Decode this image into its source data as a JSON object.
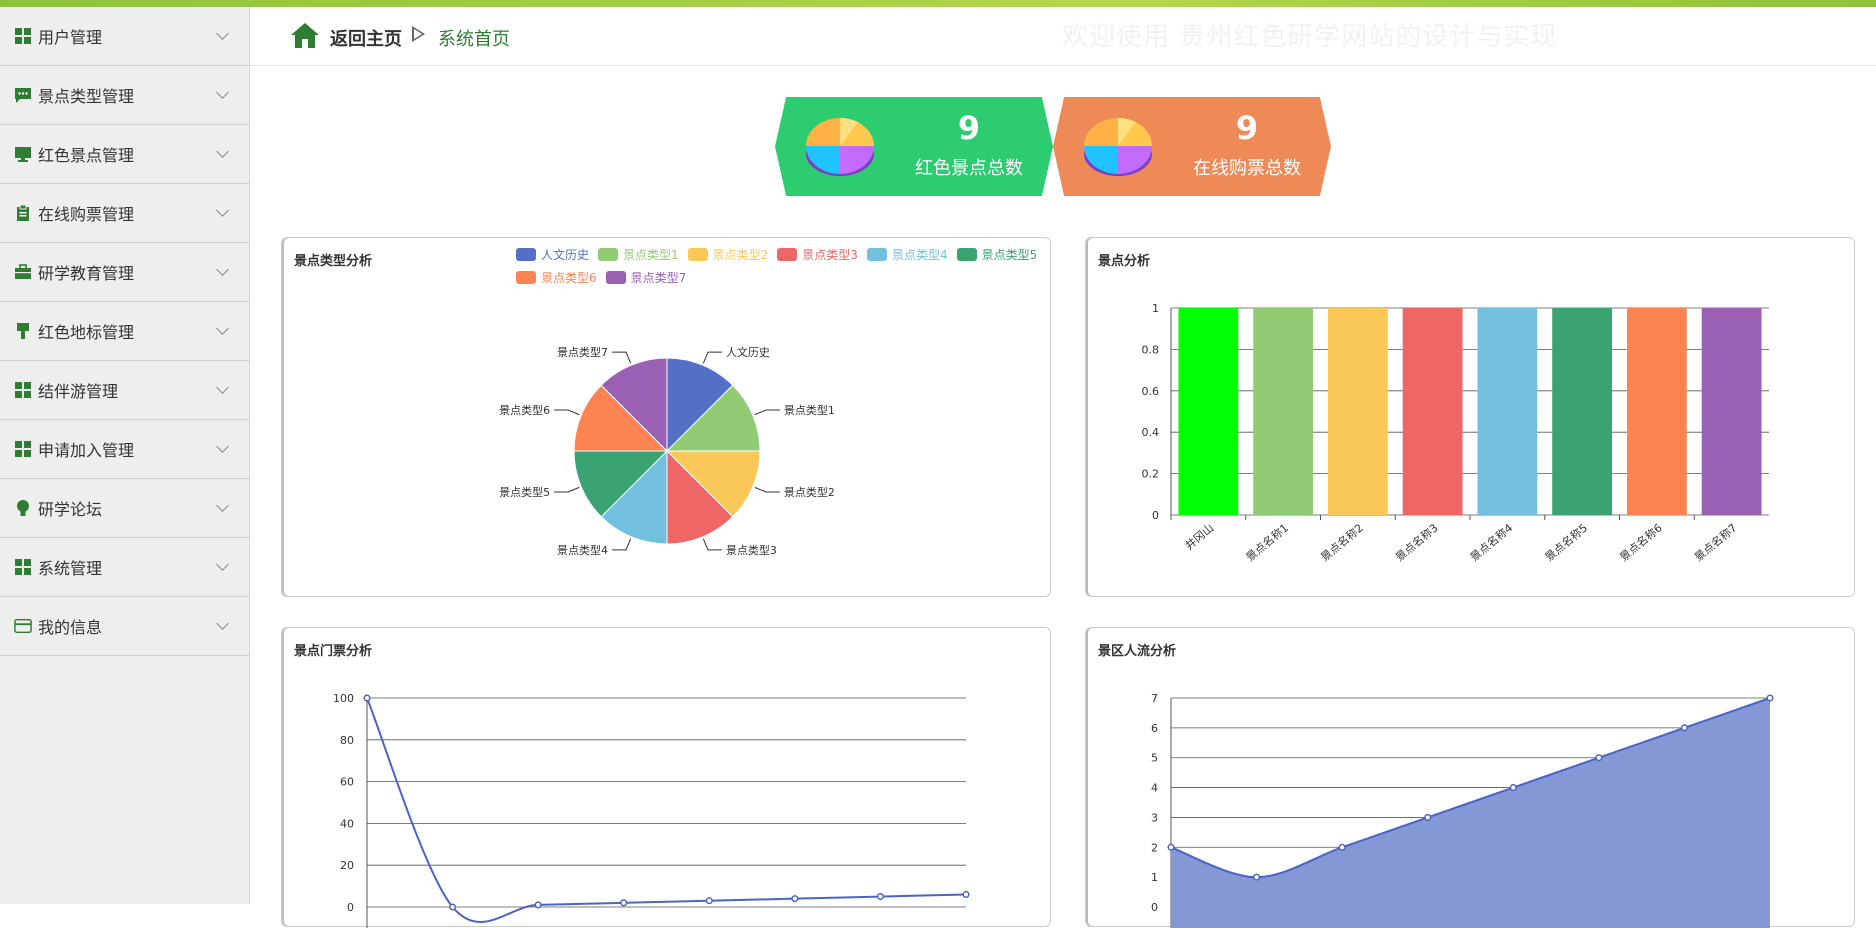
{
  "app": {
    "ghost_title": "欢迎使用 贵州红色研学网站的设计与实现"
  },
  "colors": {
    "accent": "#2e7d32",
    "stat1": "#2ecc71",
    "stat2": "#ed8a58"
  },
  "sidebar": {
    "items": [
      {
        "label": "用户管理",
        "icon": "grid-icon"
      },
      {
        "label": "景点类型管理",
        "icon": "chat-icon"
      },
      {
        "label": "红色景点管理",
        "icon": "monitor-icon"
      },
      {
        "label": "在线购票管理",
        "icon": "clipboard-icon"
      },
      {
        "label": "研学教育管理",
        "icon": "briefcase-icon"
      },
      {
        "label": "红色地标管理",
        "icon": "brush-icon"
      },
      {
        "label": "结伴游管理",
        "icon": "grid-icon"
      },
      {
        "label": "申请加入管理",
        "icon": "grid-icon"
      },
      {
        "label": "研学论坛",
        "icon": "bulb-icon"
      },
      {
        "label": "系统管理",
        "icon": "grid-icon"
      },
      {
        "label": "我的信息",
        "icon": "card-icon"
      }
    ]
  },
  "header": {
    "back_home": "返回主页",
    "current": "系统首页"
  },
  "stats": [
    {
      "value": "9",
      "label": "红色景点总数"
    },
    {
      "value": "9",
      "label": "在线购票总数"
    }
  ],
  "panels": {
    "type_analysis": "景点类型分析",
    "spot_analysis": "景点分析",
    "ticket_analysis": "景点门票分析",
    "flow_analysis": "景区人流分析"
  },
  "chart_data": [
    {
      "type": "pie",
      "title": "景点类型分析",
      "categories": [
        "人文历史",
        "景点类型1",
        "景点类型2",
        "景点类型3",
        "景点类型4",
        "景点类型5",
        "景点类型6",
        "景点类型7"
      ],
      "values": [
        1,
        1,
        1,
        1,
        1,
        1,
        1,
        1
      ],
      "colors": [
        "#5470c6",
        "#91cc75",
        "#fac858",
        "#ee6666",
        "#73c0de",
        "#3ba272",
        "#fc8452",
        "#9a60b4"
      ],
      "legend": "top-right"
    },
    {
      "type": "bar",
      "title": "景点分析",
      "categories": [
        "井冈山",
        "景点名称1",
        "景点名称2",
        "景点名称3",
        "景点名称4",
        "景点名称5",
        "景点名称6",
        "景点名称7"
      ],
      "values": [
        1,
        1,
        1,
        1,
        1,
        1,
        1,
        1
      ],
      "colors": [
        "#00ff00",
        "#91cc75",
        "#fac858",
        "#ee6666",
        "#73c0de",
        "#3ba272",
        "#fc8452",
        "#9a60b4"
      ],
      "ylim": [
        0,
        1
      ],
      "yticks": [
        "0",
        "0.2",
        "0.4",
        "0.6",
        "0.8",
        "1"
      ],
      "grid": true
    },
    {
      "type": "line",
      "title": "景点门票分析",
      "values": [
        100,
        0,
        1,
        2,
        3,
        4,
        5,
        6
      ],
      "ylim": [
        0,
        100
      ],
      "yticks": [
        "0",
        "20",
        "40",
        "60",
        "80",
        "100"
      ],
      "color": "#4a63c6",
      "grid": true
    },
    {
      "type": "area",
      "title": "景区人流分析",
      "values": [
        2,
        1,
        2,
        3,
        4,
        5,
        6,
        7
      ],
      "ylim": [
        0,
        7
      ],
      "yticks": [
        "0",
        "1",
        "2",
        "3",
        "4",
        "5",
        "6",
        "7"
      ],
      "color": "#4a63c6",
      "fill": "#8598d6",
      "grid": true
    }
  ]
}
